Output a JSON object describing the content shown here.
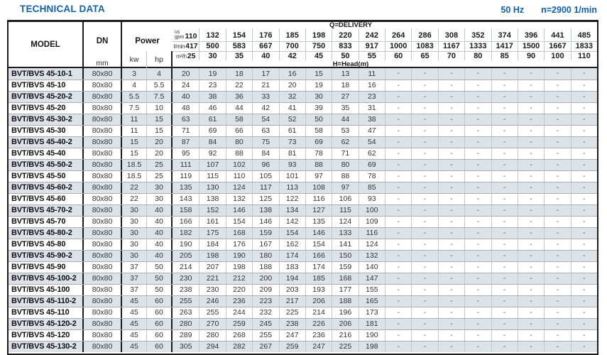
{
  "title": "TECHNICAL DATA",
  "top_right": {
    "frequency": "50 Hz",
    "speed": "n=2900 1/min"
  },
  "colors": {
    "accent_blue": "#1161a8",
    "row_stripe": "#dce2e8",
    "grid_line": "#c2c8cd"
  },
  "table": {
    "model_header": "MODEL",
    "dn_header": "DN",
    "dn_unit": "mm",
    "power_header": "Power",
    "power_units": [
      "kw",
      "hp"
    ],
    "delivery_label": "Q=DELIVERY",
    "head_label": {
      "pre": "H=Head(",
      "unit": "m",
      "post": ")"
    },
    "flow_units": {
      "us": "us",
      "gpm": "gpm",
      "lmin": "l/min",
      "m3h": "m³/h"
    },
    "flow_gpm": [
      "110",
      "132",
      "154",
      "176",
      "185",
      "198",
      "220",
      "242",
      "264",
      "286",
      "308",
      "352",
      "374",
      "396",
      "441",
      "485"
    ],
    "flow_lmin": [
      "417",
      "500",
      "583",
      "667",
      "700",
      "750",
      "833",
      "917",
      "1000",
      "1083",
      "1167",
      "1333",
      "1417",
      "1500",
      "1667",
      "1833"
    ],
    "flow_m3h": [
      "25",
      "30",
      "35",
      "40",
      "42",
      "45",
      "50",
      "55",
      "60",
      "65",
      "70",
      "80",
      "85",
      "90",
      "100",
      "110"
    ],
    "rows": [
      {
        "model": "BVT/BVS 45-10-1",
        "dn": "80x80",
        "kw": "3",
        "hp": "4",
        "head": [
          "20",
          "19",
          "18",
          "17",
          "16",
          "15",
          "13",
          "11",
          "-",
          "-",
          "-",
          "-",
          "-",
          "-",
          "-",
          "-"
        ]
      },
      {
        "model": "BVT/BVS 45-10",
        "dn": "80x80",
        "kw": "4",
        "hp": "5.5",
        "head": [
          "24",
          "23",
          "22",
          "21",
          "20",
          "19",
          "18",
          "16",
          "-",
          "-",
          "-",
          "-",
          "-",
          "-",
          "-",
          "-"
        ]
      },
      {
        "model": "BVT/BVS 45-20-2",
        "dn": "80x80",
        "kw": "5.5",
        "hp": "7.5",
        "head": [
          "40",
          "38",
          "36",
          "33",
          "32",
          "30",
          "27",
          "23",
          "-",
          "-",
          "-",
          "-",
          "-",
          "-",
          "-",
          "-"
        ]
      },
      {
        "model": "BVT/BVS 45-20",
        "dn": "80x80",
        "kw": "7.5",
        "hp": "10",
        "head": [
          "48",
          "46",
          "44",
          "42",
          "41",
          "39",
          "35",
          "31",
          "-",
          "-",
          "-",
          "-",
          "-",
          "-",
          "-",
          "-"
        ]
      },
      {
        "model": "BVT/BVS 45-30-2",
        "dn": "80x80",
        "kw": "11",
        "hp": "15",
        "head": [
          "63",
          "61",
          "58",
          "54",
          "52",
          "50",
          "44",
          "38",
          "-",
          "-",
          "-",
          "-",
          "-",
          "-",
          "-",
          "-"
        ]
      },
      {
        "model": "BVT/BVS 45-30",
        "dn": "80x80",
        "kw": "11",
        "hp": "15",
        "head": [
          "71",
          "69",
          "66",
          "63",
          "61",
          "58",
          "53",
          "47",
          "-",
          "-",
          "-",
          "-",
          "-",
          "-",
          "-",
          "-"
        ]
      },
      {
        "model": "BVT/BVS 45-40-2",
        "dn": "80x80",
        "kw": "15",
        "hp": "20",
        "head": [
          "87",
          "84",
          "80",
          "75",
          "73",
          "69",
          "62",
          "54",
          "-",
          "-",
          "-",
          "-",
          "-",
          "-",
          "-",
          "-"
        ]
      },
      {
        "model": "BVT/BVS 45-40",
        "dn": "80x80",
        "kw": "15",
        "hp": "20",
        "head": [
          "95",
          "92",
          "88",
          "84",
          "81",
          "78",
          "71",
          "62",
          "-",
          "-",
          "-",
          "-",
          "-",
          "-",
          "-",
          "-"
        ]
      },
      {
        "model": "BVT/BVS 45-50-2",
        "dn": "80x80",
        "kw": "18.5",
        "hp": "25",
        "head": [
          "111",
          "107",
          "102",
          "96",
          "93",
          "88",
          "80",
          "69",
          "-",
          "-",
          "-",
          "-",
          "-",
          "-",
          "-",
          "-"
        ]
      },
      {
        "model": "BVT/BVS 45-50",
        "dn": "80x80",
        "kw": "18.5",
        "hp": "25",
        "head": [
          "119",
          "115",
          "110",
          "105",
          "101",
          "97",
          "88",
          "78",
          "-",
          "-",
          "-",
          "-",
          "-",
          "-",
          "-",
          "-"
        ]
      },
      {
        "model": "BVT/BVS 45-60-2",
        "dn": "80x80",
        "kw": "22",
        "hp": "30",
        "head": [
          "135",
          "130",
          "124",
          "117",
          "113",
          "108",
          "97",
          "85",
          "-",
          "-",
          "-",
          "-",
          "-",
          "-",
          "-",
          "-"
        ]
      },
      {
        "model": "BVT/BVS 45-60",
        "dn": "80x80",
        "kw": "22",
        "hp": "30",
        "head": [
          "143",
          "138",
          "132",
          "125",
          "122",
          "116",
          "106",
          "93",
          "-",
          "-",
          "-",
          "-",
          "-",
          "-",
          "-",
          "-"
        ]
      },
      {
        "model": "BVT/BVS 45-70-2",
        "dn": "80x80",
        "kw": "30",
        "hp": "40",
        "head": [
          "158",
          "152",
          "146",
          "138",
          "134",
          "127",
          "115",
          "100",
          "-",
          "-",
          "-",
          "-",
          "-",
          "-",
          "-",
          "-"
        ]
      },
      {
        "model": "BVT/BVS 45-70",
        "dn": "80x80",
        "kw": "30",
        "hp": "40",
        "head": [
          "166",
          "161",
          "154",
          "146",
          "142",
          "135",
          "124",
          "109",
          "-",
          "-",
          "-",
          "-",
          "-",
          "-",
          "-",
          "-"
        ]
      },
      {
        "model": "BVT/BVS 45-80-2",
        "dn": "80x80",
        "kw": "30",
        "hp": "40",
        "head": [
          "182",
          "175",
          "168",
          "159",
          "154",
          "146",
          "133",
          "116",
          "-",
          "-",
          "-",
          "-",
          "-",
          "-",
          "-",
          "-"
        ]
      },
      {
        "model": "BVT/BVS 45-80",
        "dn": "80x80",
        "kw": "30",
        "hp": "40",
        "head": [
          "190",
          "184",
          "176",
          "167",
          "162",
          "154",
          "141",
          "124",
          "-",
          "-",
          "-",
          "-",
          "-",
          "-",
          "-",
          "-"
        ]
      },
      {
        "model": "BVT/BVS 45-90-2",
        "dn": "80x80",
        "kw": "30",
        "hp": "40",
        "head": [
          "205",
          "198",
          "190",
          "180",
          "174",
          "166",
          "150",
          "132",
          "-",
          "-",
          "-",
          "-",
          "-",
          "-",
          "-",
          "-"
        ]
      },
      {
        "model": "BVT/BVS 45-90",
        "dn": "80x80",
        "kw": "37",
        "hp": "50",
        "head": [
          "214",
          "207",
          "198",
          "188",
          "183",
          "174",
          "159",
          "140",
          "-",
          "-",
          "-",
          "-",
          "-",
          "-",
          "-",
          "-"
        ]
      },
      {
        "model": "BVT/BVS 45-100-2",
        "dn": "80x80",
        "kw": "37",
        "hp": "50",
        "head": [
          "230",
          "221",
          "212",
          "200",
          "194",
          "185",
          "168",
          "147",
          "-",
          "-",
          "-",
          "-",
          "-",
          "-",
          "-",
          "-"
        ]
      },
      {
        "model": "BVT/BVS 45-100",
        "dn": "80x80",
        "kw": "37",
        "hp": "50",
        "head": [
          "238",
          "230",
          "220",
          "209",
          "203",
          "193",
          "177",
          "155",
          "-",
          "-",
          "-",
          "-",
          "-",
          "-",
          "-",
          "-"
        ]
      },
      {
        "model": "BVT/BVS 45-110-2",
        "dn": "80x80",
        "kw": "45",
        "hp": "60",
        "head": [
          "255",
          "246",
          "236",
          "223",
          "217",
          "206",
          "188",
          "165",
          "-",
          "-",
          "-",
          "-",
          "-",
          "-",
          "-",
          "-"
        ]
      },
      {
        "model": "BVT/BVS 45-110",
        "dn": "80x80",
        "kw": "45",
        "hp": "60",
        "head": [
          "263",
          "255",
          "244",
          "232",
          "225",
          "214",
          "196",
          "173",
          "-",
          "-",
          "-",
          "-",
          "-",
          "-",
          "-",
          "-"
        ]
      },
      {
        "model": "BVT/BVS 45-120-2",
        "dn": "80x80",
        "kw": "45",
        "hp": "60",
        "head": [
          "280",
          "270",
          "259",
          "245",
          "238",
          "226",
          "206",
          "181",
          "-",
          "-",
          "-",
          "-",
          "-",
          "-",
          "-",
          "-"
        ]
      },
      {
        "model": "BVT/BVS 45-120",
        "dn": "80x80",
        "kw": "45",
        "hp": "60",
        "head": [
          "289",
          "280",
          "268",
          "255",
          "247",
          "236",
          "216",
          "190",
          "-",
          "-",
          "-",
          "-",
          "-",
          "-",
          "-",
          "-"
        ]
      },
      {
        "model": "BVT/BVS 45-130-2",
        "dn": "80x80",
        "kw": "45",
        "hp": "60",
        "head": [
          "305",
          "294",
          "282",
          "267",
          "259",
          "247",
          "225",
          "198",
          "-",
          "-",
          "-",
          "-",
          "-",
          "-",
          "-",
          "-"
        ]
      }
    ]
  }
}
